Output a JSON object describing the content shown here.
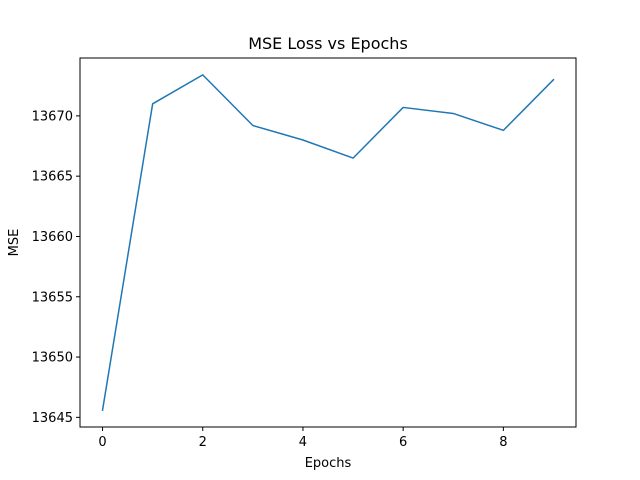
{
  "chart_data": {
    "type": "line",
    "title": "MSE Loss vs Epochs",
    "xlabel": "Epochs",
    "ylabel": "MSE",
    "x": [
      0,
      1,
      2,
      3,
      4,
      5,
      6,
      7,
      8,
      9
    ],
    "series": [
      {
        "values": [
          13645.6,
          13671.0,
          13673.4,
          13669.2,
          13668.0,
          13666.5,
          13670.7,
          13670.2,
          13668.8,
          13673.0
        ],
        "color": "#1f77b4"
      }
    ],
    "xlim": [
      -0.45,
      9.45
    ],
    "ylim": [
      13644.2,
      13674.8
    ],
    "xticks": [
      0,
      2,
      4,
      6,
      8
    ],
    "yticks": [
      13645,
      13650,
      13655,
      13660,
      13665,
      13670
    ],
    "xtick_labels": [
      "0",
      "2",
      "4",
      "6",
      "8"
    ],
    "ytick_labels": [
      "13645",
      "13650",
      "13655",
      "13660",
      "13665",
      "13670"
    ],
    "grid": false,
    "legend": false
  }
}
